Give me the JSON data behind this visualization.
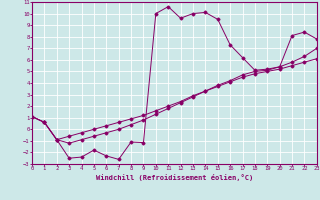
{
  "xlabel": "Windchill (Refroidissement éolien,°C)",
  "xlim": [
    0,
    23
  ],
  "ylim": [
    -3,
    11
  ],
  "xticks": [
    0,
    1,
    2,
    3,
    4,
    5,
    6,
    7,
    8,
    9,
    10,
    11,
    12,
    13,
    14,
    15,
    16,
    17,
    18,
    19,
    20,
    21,
    22,
    23
  ],
  "yticks": [
    -3,
    -2,
    -1,
    0,
    1,
    2,
    3,
    4,
    5,
    6,
    7,
    8,
    9,
    10,
    11
  ],
  "bg_color": "#cde8e8",
  "line_color": "#880066",
  "grid_color": "#ffffff",
  "curve1_x": [
    0,
    1,
    2,
    3,
    4,
    5,
    6,
    7,
    8,
    9,
    10,
    11,
    12,
    13,
    14,
    15,
    16,
    17,
    18,
    19,
    20,
    21,
    22,
    23
  ],
  "curve1_y": [
    1.1,
    0.6,
    -0.9,
    -2.5,
    -2.4,
    -1.8,
    -2.3,
    -2.6,
    -1.1,
    -1.15,
    10.0,
    10.6,
    9.6,
    10.0,
    10.1,
    9.5,
    7.3,
    6.2,
    5.1,
    5.2,
    5.4,
    8.1,
    8.4,
    7.8
  ],
  "curve2_x": [
    0,
    1,
    2,
    3,
    4,
    5,
    6,
    7,
    8,
    9,
    10,
    11,
    12,
    13,
    14,
    15,
    16,
    17,
    18,
    19,
    20,
    21,
    22,
    23
  ],
  "curve2_y": [
    1.1,
    0.6,
    -0.9,
    -0.6,
    -0.3,
    0.0,
    0.3,
    0.6,
    0.9,
    1.2,
    1.6,
    2.0,
    2.4,
    2.9,
    3.3,
    3.7,
    4.1,
    4.5,
    4.8,
    5.0,
    5.2,
    5.5,
    5.8,
    6.1
  ],
  "curve3_x": [
    0,
    1,
    2,
    3,
    4,
    5,
    6,
    7,
    8,
    9,
    10,
    11,
    12,
    13,
    14,
    15,
    16,
    17,
    18,
    19,
    20,
    21,
    22,
    23
  ],
  "curve3_y": [
    1.1,
    0.6,
    -0.9,
    -1.2,
    -0.9,
    -0.6,
    -0.3,
    0.0,
    0.4,
    0.8,
    1.3,
    1.8,
    2.3,
    2.8,
    3.3,
    3.8,
    4.2,
    4.7,
    5.0,
    5.1,
    5.4,
    5.8,
    6.3,
    7.0
  ]
}
